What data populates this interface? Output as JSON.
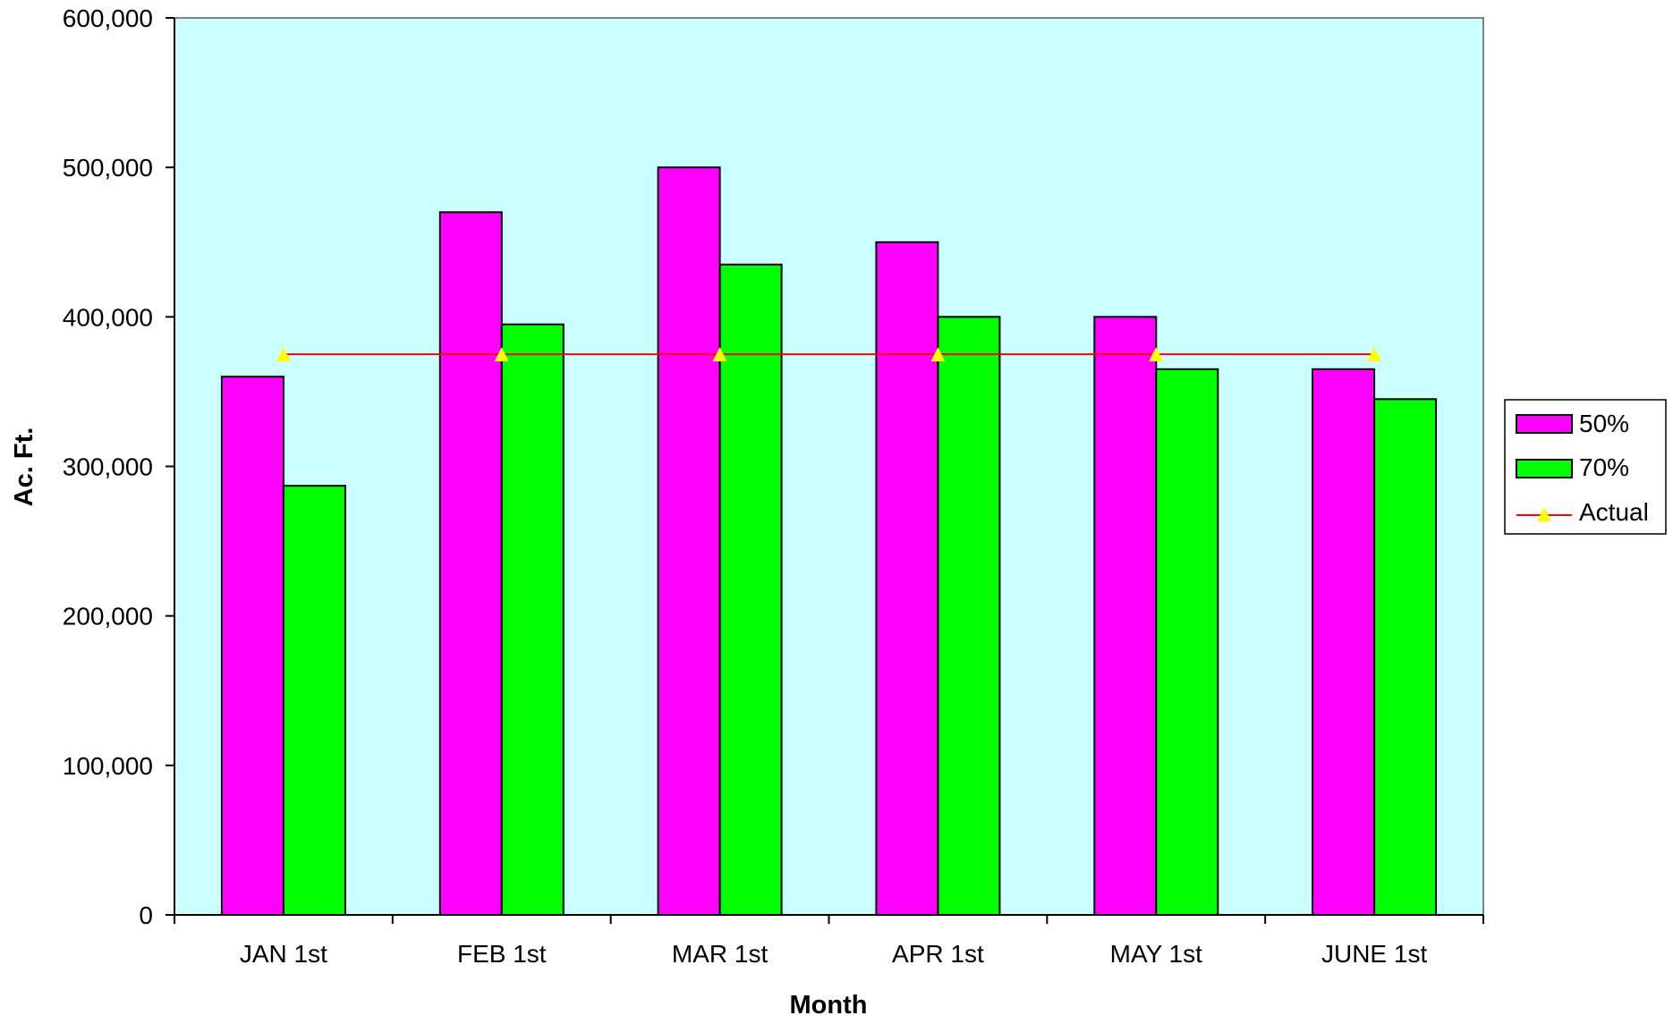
{
  "chart_data": {
    "type": "bar",
    "title": "",
    "xlabel": "Month",
    "ylabel": "Ac. Ft.",
    "categories": [
      "JAN 1st",
      "FEB 1st",
      "MAR 1st",
      "APR 1st",
      "MAY 1st",
      "JUNE 1st"
    ],
    "series": [
      {
        "name": "50%",
        "type": "bar",
        "color": "#FF00FF",
        "values": [
          360000,
          470000,
          500000,
          450000,
          400000,
          365000
        ]
      },
      {
        "name": "70%",
        "type": "bar",
        "color": "#00FF00",
        "values": [
          287000,
          395000,
          435000,
          400000,
          365000,
          345000
        ]
      },
      {
        "name": "Actual",
        "type": "line",
        "color": "#FF0000",
        "marker": "triangle",
        "marker_color": "#FFFF00",
        "values": [
          375000,
          375000,
          375000,
          375000,
          375000,
          375000
        ]
      }
    ],
    "ylim": [
      0,
      600000
    ],
    "yticks": [
      0,
      100000,
      200000,
      300000,
      400000,
      500000,
      600000
    ],
    "ytick_labels": [
      "0",
      "100,000",
      "200,000",
      "300,000",
      "400,000",
      "500,000",
      "600,000"
    ],
    "plot_background": "#CCFFFF",
    "grid": false,
    "legend_position": "right"
  }
}
